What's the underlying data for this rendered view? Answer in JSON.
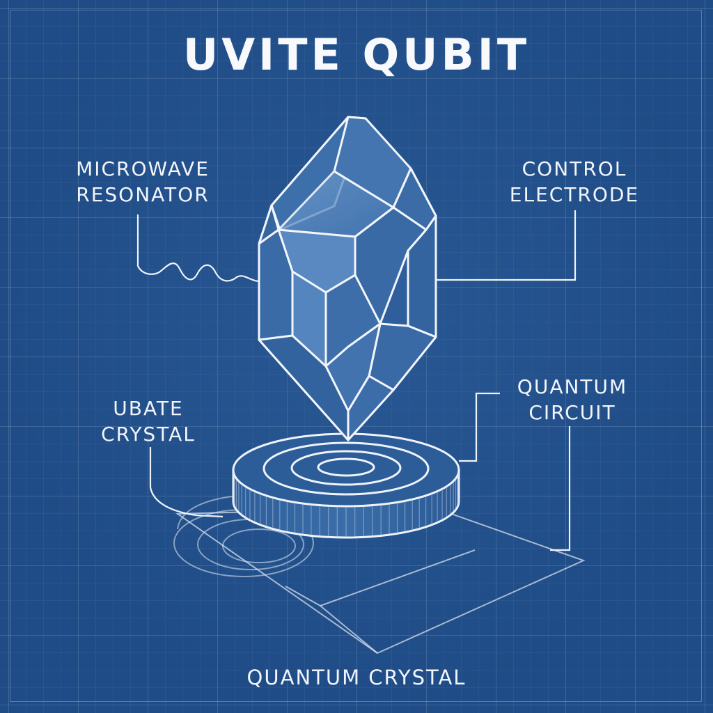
{
  "title": "UVITE QUBIT",
  "labels": {
    "microwave_resonator": [
      "MICROWAVE",
      "RESONATOR"
    ],
    "control_electrode": [
      "CONTROL",
      "ELECTRODE"
    ],
    "ubate_crystal": [
      "UBATE",
      "CRYSTAL"
    ],
    "quantum_circuit": [
      "QUANTUM",
      "CIRCUIT"
    ],
    "quantum_crystal": "QUANTUM CRYSTAL"
  },
  "colors": {
    "background": "#1f4c86",
    "line": "#eef3fa",
    "text": "#f4f7fb"
  }
}
